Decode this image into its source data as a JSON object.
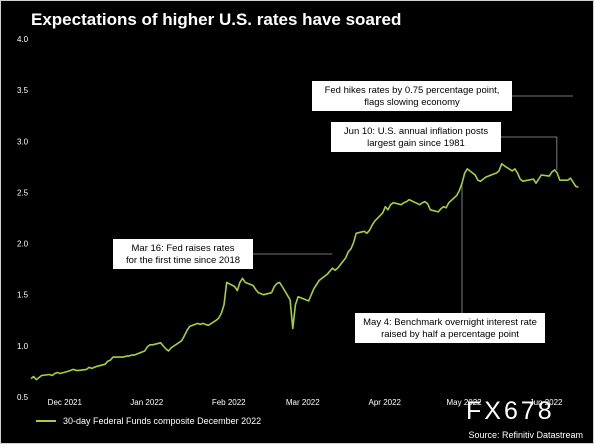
{
  "title": "Expectations of higher U.S. rates have soared",
  "legend_label": "30-day Federal Funds composite December 2022",
  "source": "Source: Refinitiv Datastream",
  "watermark": "FX678",
  "colors": {
    "background": "#000000",
    "line": "#a6cf3e",
    "text": "#ffffff",
    "annotation_box": "#ffffff",
    "connector": "#9a9a9a"
  },
  "chart_data": {
    "type": "line",
    "title": "Expectations of higher U.S. rates have soared",
    "xlabel": "",
    "ylabel": "",
    "ylim": [
      0.5,
      4.0
    ],
    "grid": false,
    "legend_position": "bottom-left",
    "yticks": [
      "4.0",
      "3.5",
      "3.0",
      "2.5",
      "2.0",
      "1.5",
      "1.0",
      "0.5"
    ],
    "xticks": [
      {
        "label": "Dec 2021",
        "date": "2021-12-01"
      },
      {
        "label": "Jan 2022",
        "date": "2022-01-01"
      },
      {
        "label": "Feb 2022",
        "date": "2022-02-01"
      },
      {
        "label": "Mar 2022",
        "date": "2022-03-01"
      },
      {
        "label": "Apr 2022",
        "date": "2022-04-01"
      },
      {
        "label": "May 2022",
        "date": "2022-05-01"
      },
      {
        "label": "Jun 2022",
        "date": "2022-06-01"
      }
    ],
    "x_start": "2021-11-22",
    "x_end": "2022-06-18",
    "series": [
      {
        "name": "30-day Federal Funds composite December 2022",
        "points": [
          [
            "2021-11-22",
            0.68
          ],
          [
            "2021-11-23",
            0.7
          ],
          [
            "2021-11-24",
            0.67
          ],
          [
            "2021-11-26",
            0.71
          ],
          [
            "2021-11-29",
            0.72
          ],
          [
            "2021-11-30",
            0.71
          ],
          [
            "2021-12-01",
            0.73
          ],
          [
            "2021-12-02",
            0.74
          ],
          [
            "2021-12-03",
            0.73
          ],
          [
            "2021-12-06",
            0.75
          ],
          [
            "2021-12-07",
            0.76
          ],
          [
            "2021-12-08",
            0.77
          ],
          [
            "2021-12-09",
            0.76
          ],
          [
            "2021-12-10",
            0.76
          ],
          [
            "2021-12-13",
            0.77
          ],
          [
            "2021-12-14",
            0.79
          ],
          [
            "2021-12-15",
            0.78
          ],
          [
            "2021-12-16",
            0.79
          ],
          [
            "2021-12-17",
            0.8
          ],
          [
            "2021-12-20",
            0.82
          ],
          [
            "2021-12-21",
            0.85
          ],
          [
            "2021-12-22",
            0.86
          ],
          [
            "2021-12-23",
            0.89
          ],
          [
            "2021-12-27",
            0.89
          ],
          [
            "2021-12-28",
            0.9
          ],
          [
            "2021-12-29",
            0.9
          ],
          [
            "2021-12-30",
            0.91
          ],
          [
            "2021-12-31",
            0.91
          ],
          [
            "2022-01-03",
            0.94
          ],
          [
            "2022-01-04",
            0.95
          ],
          [
            "2022-01-05",
            0.99
          ],
          [
            "2022-01-06",
            1.01
          ],
          [
            "2022-01-07",
            1.01
          ],
          [
            "2022-01-10",
            1.03
          ],
          [
            "2022-01-11",
            1.0
          ],
          [
            "2022-01-12",
            0.97
          ],
          [
            "2022-01-13",
            0.95
          ],
          [
            "2022-01-14",
            0.98
          ],
          [
            "2022-01-18",
            1.05
          ],
          [
            "2022-01-19",
            1.1
          ],
          [
            "2022-01-20",
            1.15
          ],
          [
            "2022-01-21",
            1.19
          ],
          [
            "2022-01-24",
            1.22
          ],
          [
            "2022-01-25",
            1.21
          ],
          [
            "2022-01-26",
            1.22
          ],
          [
            "2022-01-27",
            1.21
          ],
          [
            "2022-01-28",
            1.2
          ],
          [
            "2022-01-31",
            1.25
          ],
          [
            "2022-02-01",
            1.27
          ],
          [
            "2022-02-02",
            1.32
          ],
          [
            "2022-02-03",
            1.4
          ],
          [
            "2022-02-04",
            1.62
          ],
          [
            "2022-02-07",
            1.58
          ],
          [
            "2022-02-08",
            1.54
          ],
          [
            "2022-02-09",
            1.62
          ],
          [
            "2022-02-10",
            1.66
          ],
          [
            "2022-02-11",
            1.62
          ],
          [
            "2022-02-14",
            1.59
          ],
          [
            "2022-02-15",
            1.55
          ],
          [
            "2022-02-16",
            1.52
          ],
          [
            "2022-02-17",
            1.51
          ],
          [
            "2022-02-18",
            1.5
          ],
          [
            "2022-02-21",
            1.52
          ],
          [
            "2022-02-22",
            1.58
          ],
          [
            "2022-02-23",
            1.61
          ],
          [
            "2022-02-24",
            1.62
          ],
          [
            "2022-02-25",
            1.58
          ],
          [
            "2022-02-28",
            1.45
          ],
          [
            "2022-03-01",
            1.17
          ],
          [
            "2022-03-02",
            1.4
          ],
          [
            "2022-03-03",
            1.48
          ],
          [
            "2022-03-04",
            1.47
          ],
          [
            "2022-03-07",
            1.44
          ],
          [
            "2022-03-08",
            1.5
          ],
          [
            "2022-03-09",
            1.56
          ],
          [
            "2022-03-10",
            1.6
          ],
          [
            "2022-03-11",
            1.64
          ],
          [
            "2022-03-14",
            1.7
          ],
          [
            "2022-03-15",
            1.73
          ],
          [
            "2022-03-16",
            1.76
          ],
          [
            "2022-03-17",
            1.74
          ],
          [
            "2022-03-18",
            1.76
          ],
          [
            "2022-03-21",
            1.86
          ],
          [
            "2022-03-22",
            1.92
          ],
          [
            "2022-03-23",
            1.95
          ],
          [
            "2022-03-24",
            2.01
          ],
          [
            "2022-03-25",
            2.1
          ],
          [
            "2022-03-28",
            2.12
          ],
          [
            "2022-03-29",
            2.1
          ],
          [
            "2022-03-30",
            2.13
          ],
          [
            "2022-03-31",
            2.18
          ],
          [
            "2022-04-01",
            2.22
          ],
          [
            "2022-04-04",
            2.3
          ],
          [
            "2022-04-05",
            2.36
          ],
          [
            "2022-04-06",
            2.33
          ],
          [
            "2022-04-07",
            2.38
          ],
          [
            "2022-04-08",
            2.4
          ],
          [
            "2022-04-11",
            2.38
          ],
          [
            "2022-04-12",
            2.4
          ],
          [
            "2022-04-13",
            2.41
          ],
          [
            "2022-04-14",
            2.43
          ],
          [
            "2022-04-18",
            2.38
          ],
          [
            "2022-04-19",
            2.4
          ],
          [
            "2022-04-20",
            2.41
          ],
          [
            "2022-04-21",
            2.39
          ],
          [
            "2022-04-22",
            2.33
          ],
          [
            "2022-04-25",
            2.31
          ],
          [
            "2022-04-26",
            2.34
          ],
          [
            "2022-04-27",
            2.36
          ],
          [
            "2022-04-28",
            2.35
          ],
          [
            "2022-04-29",
            2.4
          ],
          [
            "2022-05-02",
            2.47
          ],
          [
            "2022-05-03",
            2.52
          ],
          [
            "2022-05-04",
            2.59
          ],
          [
            "2022-05-05",
            2.69
          ],
          [
            "2022-05-06",
            2.73
          ],
          [
            "2022-05-09",
            2.67
          ],
          [
            "2022-05-10",
            2.62
          ],
          [
            "2022-05-11",
            2.61
          ],
          [
            "2022-05-12",
            2.63
          ],
          [
            "2022-05-13",
            2.65
          ],
          [
            "2022-05-16",
            2.68
          ],
          [
            "2022-05-17",
            2.69
          ],
          [
            "2022-05-18",
            2.71
          ],
          [
            "2022-05-19",
            2.78
          ],
          [
            "2022-05-20",
            2.76
          ],
          [
            "2022-05-23",
            2.71
          ],
          [
            "2022-05-24",
            2.73
          ],
          [
            "2022-05-25",
            2.69
          ],
          [
            "2022-05-26",
            2.63
          ],
          [
            "2022-05-27",
            2.61
          ],
          [
            "2022-05-31",
            2.63
          ],
          [
            "2022-06-01",
            2.59
          ],
          [
            "2022-06-02",
            2.63
          ],
          [
            "2022-06-03",
            2.67
          ],
          [
            "2022-06-06",
            2.66
          ],
          [
            "2022-06-07",
            2.7
          ],
          [
            "2022-06-08",
            2.72
          ],
          [
            "2022-06-09",
            2.69
          ],
          [
            "2022-06-10",
            2.62
          ],
          [
            "2022-06-13",
            2.62
          ],
          [
            "2022-06-14",
            2.64
          ],
          [
            "2022-06-15",
            2.6
          ],
          [
            "2022-06-16",
            2.56
          ],
          [
            "2022-06-17",
            2.55
          ]
        ]
      }
    ],
    "annotations": [
      {
        "name": "mar16-annotation",
        "lines": [
          "Mar 16: Fed raises rates",
          "for the first time since 2018"
        ],
        "date": "2022-03-16"
      },
      {
        "name": "may4-annotation",
        "lines": [
          "May 4: Benchmark overnight interest rate",
          "raised by half a percentage point"
        ],
        "date": "2022-05-04"
      },
      {
        "name": "jun10-annotation",
        "lines": [
          "Jun 10: U.S. annual inflation posts",
          "largest gain since 1981"
        ],
        "date": "2022-06-10"
      },
      {
        "name": "jun15-annotation",
        "lines": [
          "Fed hikes rates by 0.75 percentage point,",
          "flags slowing economy"
        ],
        "date": "2022-06-15"
      }
    ]
  }
}
